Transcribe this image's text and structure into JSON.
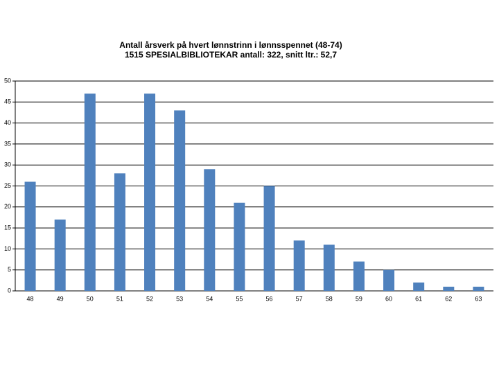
{
  "chart_data": {
    "type": "bar",
    "title": "Antall årsverk på hvert lønnstrinn i lønnsspennet (48-74)",
    "subtitle": "1515 SPESIALBIBLIOTEKAR antall: 322, snitt ltr.: 52,7",
    "categories": [
      "48",
      "49",
      "50",
      "51",
      "52",
      "53",
      "54",
      "55",
      "56",
      "57",
      "58",
      "59",
      "60",
      "61",
      "62",
      "63"
    ],
    "values": [
      26,
      17,
      47,
      28,
      47,
      43,
      29,
      21,
      25,
      12,
      11,
      7,
      5,
      2,
      1,
      1
    ],
    "color": "#4f81bd",
    "ylim": [
      0,
      50
    ],
    "yticks": [
      0,
      5,
      10,
      15,
      20,
      25,
      30,
      35,
      40,
      45,
      50
    ],
    "grid": true
  }
}
